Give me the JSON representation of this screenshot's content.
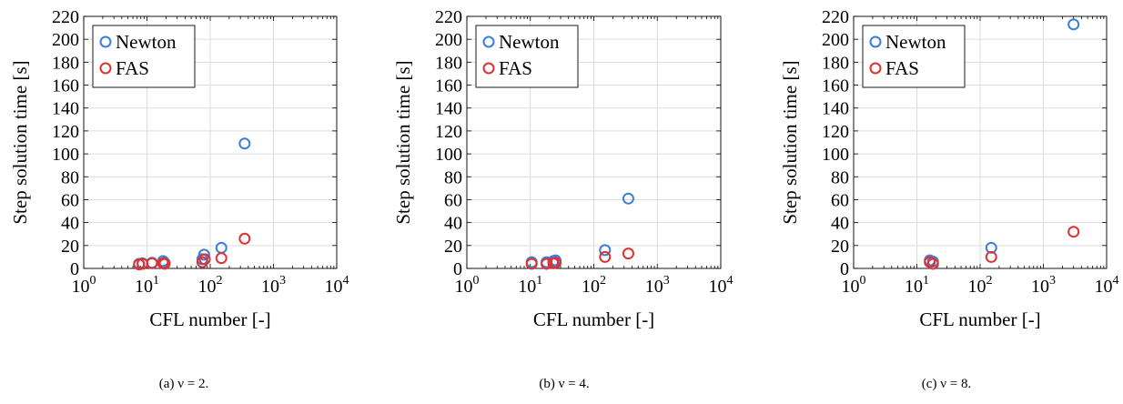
{
  "figure": {
    "captions": [
      {
        "label": "(a)",
        "text": "ν = 2."
      },
      {
        "label": "(b)",
        "text": "ν = 4."
      },
      {
        "label": "(c)",
        "text": "ν = 8."
      }
    ]
  },
  "chart_data": [
    {
      "type": "scatter",
      "xlabel": "CFL number [-]",
      "ylabel": "Step solution time [s]",
      "xscale": "log",
      "xlim": [
        1,
        10000
      ],
      "ylim": [
        0,
        220
      ],
      "xtick_labels": [
        "10^0",
        "10^1",
        "10^2",
        "10^3",
        "10^4"
      ],
      "yticks": [
        0,
        20,
        40,
        60,
        80,
        100,
        120,
        140,
        160,
        180,
        200,
        220
      ],
      "grid": true,
      "legend_position": "top-left",
      "series": [
        {
          "name": "Newton",
          "color": "#3b7dd8",
          "points": [
            [
              7.5,
              4
            ],
            [
              8.5,
              4.5
            ],
            [
              12,
              5
            ],
            [
              18,
              6.5
            ],
            [
              19,
              5
            ],
            [
              75,
              8
            ],
            [
              80,
              12
            ],
            [
              150,
              18
            ],
            [
              350,
              109
            ]
          ]
        },
        {
          "name": "FAS",
          "color": "#e03030",
          "points": [
            [
              7.5,
              3.5
            ],
            [
              8.5,
              4
            ],
            [
              12,
              4.5
            ],
            [
              18,
              4.5
            ],
            [
              19,
              4
            ],
            [
              75,
              5.5
            ],
            [
              82,
              8
            ],
            [
              150,
              9
            ],
            [
              350,
              26
            ]
          ]
        }
      ]
    },
    {
      "type": "scatter",
      "xlabel": "CFL number [-]",
      "ylabel": "Step solution time [s]",
      "xscale": "log",
      "xlim": [
        1,
        10000
      ],
      "ylim": [
        0,
        220
      ],
      "xtick_labels": [
        "10^0",
        "10^1",
        "10^2",
        "10^3",
        "10^4"
      ],
      "yticks": [
        0,
        20,
        40,
        60,
        80,
        100,
        120,
        140,
        160,
        180,
        200,
        220
      ],
      "grid": true,
      "legend_position": "top-left",
      "series": [
        {
          "name": "Newton",
          "color": "#3b7dd8",
          "points": [
            [
              10.5,
              5.5
            ],
            [
              18,
              5.5
            ],
            [
              23,
              6.5
            ],
            [
              25,
              7
            ],
            [
              150,
              16
            ],
            [
              350,
              61
            ]
          ]
        },
        {
          "name": "FAS",
          "color": "#e03030",
          "points": [
            [
              10.5,
              4
            ],
            [
              18,
              4
            ],
            [
              23,
              4.5
            ],
            [
              25,
              5
            ],
            [
              150,
              10
            ],
            [
              350,
              13
            ]
          ]
        }
      ]
    },
    {
      "type": "scatter",
      "xlabel": "CFL number [-]",
      "ylabel": "Step solution time [s]",
      "xscale": "log",
      "xlim": [
        1,
        10000
      ],
      "ylim": [
        0,
        220
      ],
      "xtick_labels": [
        "10^0",
        "10^1",
        "10^2",
        "10^3",
        "10^4"
      ],
      "yticks": [
        0,
        20,
        40,
        60,
        80,
        100,
        120,
        140,
        160,
        180,
        200,
        220
      ],
      "grid": true,
      "legend_position": "top-left",
      "series": [
        {
          "name": "Newton",
          "color": "#3b7dd8",
          "points": [
            [
              16,
              7
            ],
            [
              18,
              6
            ],
            [
              150,
              18
            ],
            [
              3000,
              213
            ]
          ]
        },
        {
          "name": "FAS",
          "color": "#e03030",
          "points": [
            [
              16,
              5.5
            ],
            [
              18,
              4
            ],
            [
              150,
              10
            ],
            [
              3000,
              32
            ]
          ]
        }
      ]
    }
  ]
}
